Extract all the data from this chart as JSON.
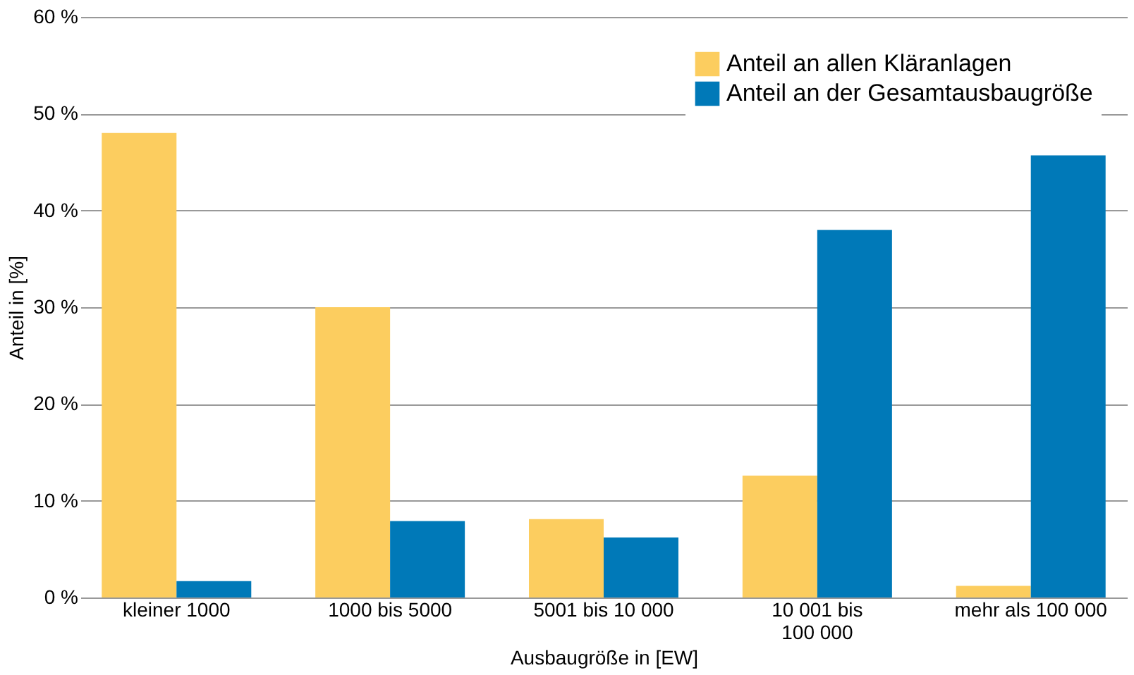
{
  "chart_data": {
    "type": "bar",
    "xlabel": "Ausbaugröße in [EW]",
    "ylabel": "Anteil in [%]",
    "categories": [
      "kleiner 1000",
      "1000 bis 5000",
      "5001 bis 10 000",
      "10 001 bis\n100 000",
      "mehr als 100 000"
    ],
    "series": [
      {
        "name": "Anteil an allen Kläranlagen",
        "color": "#fccd5f",
        "values": [
          48,
          30,
          8.1,
          12.6,
          1.2
        ]
      },
      {
        "name": "Anteil an der Gesamtausbaugröße",
        "color": "#0079b8",
        "values": [
          1.7,
          7.9,
          6.2,
          38,
          45.7
        ]
      }
    ],
    "ylim": [
      0,
      60
    ],
    "yticks": [
      {
        "value": 0,
        "label": "0 %"
      },
      {
        "value": 10,
        "label": "10 %"
      },
      {
        "value": 20,
        "label": "20 %"
      },
      {
        "value": 30,
        "label": "30 %"
      },
      {
        "value": 40,
        "label": "40 %"
      },
      {
        "value": 50,
        "label": "50 %"
      },
      {
        "value": 60,
        "label": "60 %"
      }
    ],
    "grid": "y",
    "legend": "top right"
  }
}
